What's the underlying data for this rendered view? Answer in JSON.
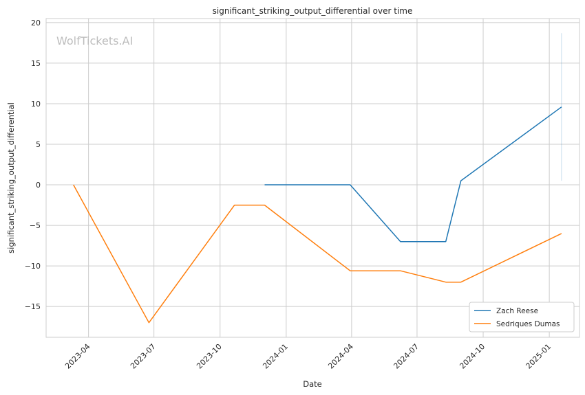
{
  "chart_data": {
    "type": "line",
    "title": "significant_striking_output_differential over time",
    "xlabel": "Date",
    "ylabel": "significant_striking_output_differential",
    "watermark": "WolfTickets.AI",
    "xlim": [
      "2023-02-01",
      "2025-02-12"
    ],
    "ylim": [
      -18.8,
      20.5
    ],
    "x_ticks": [
      "2023-04-01",
      "2023-07-01",
      "2023-10-01",
      "2024-01-01",
      "2024-04-01",
      "2024-07-01",
      "2024-10-01",
      "2025-01-01"
    ],
    "x_tick_labels": [
      "2023-04",
      "2023-07",
      "2023-10",
      "2024-01",
      "2024-04",
      "2024-07",
      "2024-10",
      "2025-01"
    ],
    "y_ticks": [
      -15,
      -10,
      -5,
      0,
      5,
      10,
      15,
      20
    ],
    "y_tick_labels": [
      "−15",
      "−10",
      "−5",
      "0",
      "5",
      "10",
      "15",
      "20"
    ],
    "grid": true,
    "legend_position": "lower-right",
    "series": [
      {
        "name": "Zach Reese",
        "color": "#1f77b4",
        "points": [
          {
            "x": "2023-12-02",
            "y": 0
          },
          {
            "x": "2024-03-30",
            "y": 0
          },
          {
            "x": "2024-06-08",
            "y": -7
          },
          {
            "x": "2024-08-10",
            "y": -7
          },
          {
            "x": "2024-08-31",
            "y": 0.5
          },
          {
            "x": "2025-01-18",
            "y": 9.6
          }
        ],
        "error_band": {
          "x": "2025-01-18",
          "low": 0.5,
          "high": 18.7
        }
      },
      {
        "name": "Sedriques Dumas",
        "color": "#ff7f0e",
        "points": [
          {
            "x": "2023-03-11",
            "y": 0
          },
          {
            "x": "2023-06-24",
            "y": -17
          },
          {
            "x": "2023-10-21",
            "y": -2.5
          },
          {
            "x": "2023-12-02",
            "y": -2.5
          },
          {
            "x": "2024-03-30",
            "y": -10.6
          },
          {
            "x": "2024-06-08",
            "y": -10.6
          },
          {
            "x": "2024-08-10",
            "y": -12
          },
          {
            "x": "2024-08-31",
            "y": -12
          },
          {
            "x": "2025-01-18",
            "y": -6
          }
        ]
      }
    ]
  }
}
